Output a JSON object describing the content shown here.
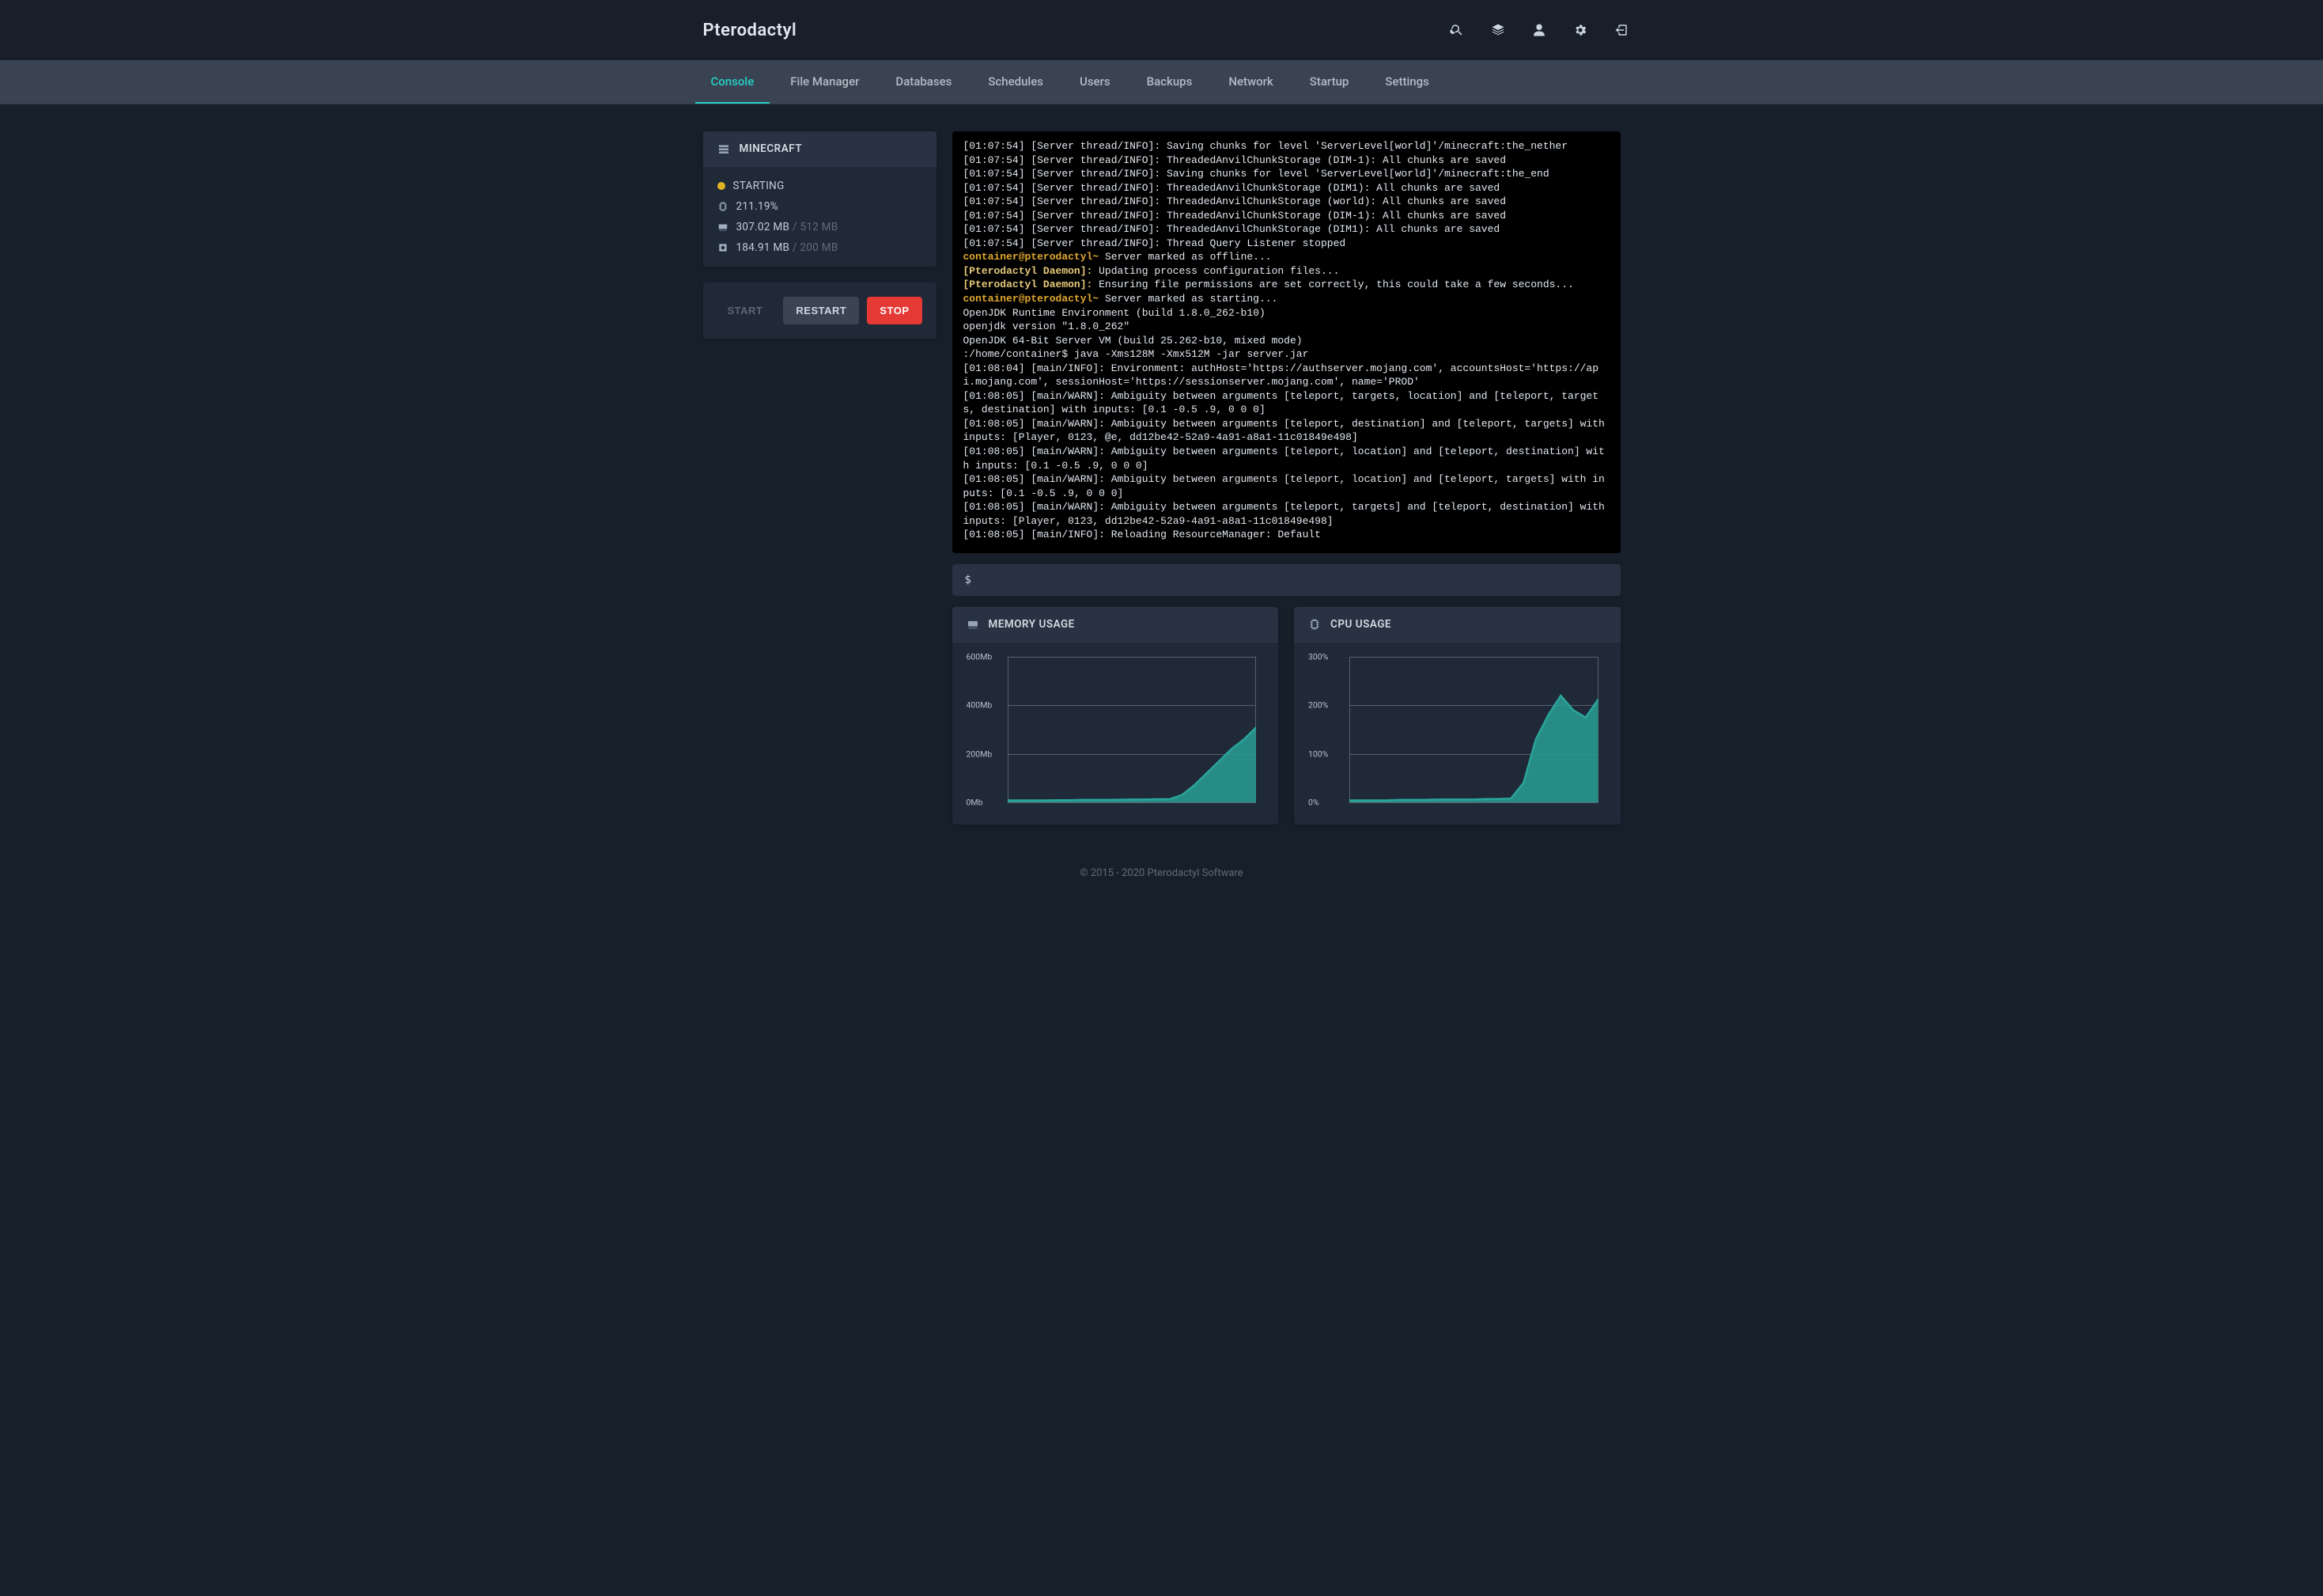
{
  "brand": "Pterodactyl",
  "tabs": [
    "Console",
    "File Manager",
    "Databases",
    "Schedules",
    "Users",
    "Backups",
    "Network",
    "Startup",
    "Settings"
  ],
  "active_tab_index": 0,
  "server": {
    "name": "MINECRAFT",
    "status": "STARTING",
    "status_color": "#e0b226",
    "cpu": "211.19%",
    "mem_used": "307.02 MB",
    "mem_total": "512 MB",
    "disk_used": "184.91 MB",
    "disk_total": "200 MB"
  },
  "buttons": {
    "start": "START",
    "restart": "RESTART",
    "stop": "STOP"
  },
  "console_lines": [
    {
      "t": "[01:07:54] [Server thread/INFO]: Saving chunks for level 'ServerLevel[world]'/minecraft:the_nether"
    },
    {
      "t": "[01:07:54] [Server thread/INFO]: ThreadedAnvilChunkStorage (DIM-1): All chunks are saved"
    },
    {
      "t": "[01:07:54] [Server thread/INFO]: Saving chunks for level 'ServerLevel[world]'/minecraft:the_end"
    },
    {
      "t": "[01:07:54] [Server thread/INFO]: ThreadedAnvilChunkStorage (DIM1): All chunks are saved"
    },
    {
      "t": "[01:07:54] [Server thread/INFO]: ThreadedAnvilChunkStorage (world): All chunks are saved"
    },
    {
      "t": "[01:07:54] [Server thread/INFO]: ThreadedAnvilChunkStorage (DIM-1): All chunks are saved"
    },
    {
      "t": "[01:07:54] [Server thread/INFO]: ThreadedAnvilChunkStorage (DIM1): All chunks are saved"
    },
    {
      "t": "[01:07:54] [Server thread/INFO]: Thread Query Listener stopped"
    },
    {
      "p": "container@pterodactyl~",
      "pc": "yl",
      "t": " Server marked as offline..."
    },
    {
      "p": "[Pterodactyl Daemon]:",
      "pc": "cy",
      "t": " Updating process configuration files..."
    },
    {
      "p": "[Pterodactyl Daemon]:",
      "pc": "cy",
      "t": " Ensuring file permissions are set correctly, this could take a few seconds..."
    },
    {
      "p": "container@pterodactyl~",
      "pc": "yl",
      "t": " Server marked as starting..."
    },
    {
      "t": "OpenJDK Runtime Environment (build 1.8.0_262-b10)"
    },
    {
      "t": "openjdk version \"1.8.0_262\""
    },
    {
      "t": "OpenJDK 64-Bit Server VM (build 25.262-b10, mixed mode)"
    },
    {
      "t": ":/home/container$ java -Xms128M -Xmx512M -jar server.jar"
    },
    {
      "t": "[01:08:04] [main/INFO]: Environment: authHost='https://authserver.mojang.com', accountsHost='https://api.mojang.com', sessionHost='https://sessionserver.mojang.com', name='PROD'"
    },
    {
      "t": "[01:08:05] [main/WARN]: Ambiguity between arguments [teleport, targets, location] and [teleport, targets, destination] with inputs: [0.1 -0.5 .9, 0 0 0]"
    },
    {
      "t": "[01:08:05] [main/WARN]: Ambiguity between arguments [teleport, destination] and [teleport, targets] with inputs: [Player, 0123, @e, dd12be42-52a9-4a91-a8a1-11c01849e498]"
    },
    {
      "t": "[01:08:05] [main/WARN]: Ambiguity between arguments [teleport, location] and [teleport, destination] with inputs: [0.1 -0.5 .9, 0 0 0]"
    },
    {
      "t": "[01:08:05] [main/WARN]: Ambiguity between arguments [teleport, location] and [teleport, targets] with inputs: [0.1 -0.5 .9, 0 0 0]"
    },
    {
      "t": "[01:08:05] [main/WARN]: Ambiguity between arguments [teleport, targets] and [teleport, destination] with inputs: [Player, 0123, dd12be42-52a9-4a91-a8a1-11c01849e498]"
    },
    {
      "t": "[01:08:05] [main/INFO]: Reloading ResourceManager: Default"
    }
  ],
  "cmd_prompt": "$",
  "memory_chart": {
    "title": "MEMORY USAGE",
    "type": "area",
    "y_ticks": [
      0,
      200,
      400,
      600
    ],
    "y_labels": [
      "0Mb",
      "200Mb",
      "400Mb",
      "600Mb"
    ],
    "y_max": 600,
    "values": [
      8,
      8,
      8,
      8,
      9,
      9,
      10,
      10,
      10,
      11,
      12,
      12,
      13,
      13,
      30,
      70,
      120,
      170,
      220,
      260,
      310
    ],
    "line_color": "#2aa59b",
    "fill_color": "#2a9d94",
    "fill_opacity": 0.85,
    "grid_color": "#57606e",
    "background": "#1f2937"
  },
  "cpu_chart": {
    "title": "CPU USAGE",
    "type": "area",
    "y_ticks": [
      0,
      100,
      200,
      300
    ],
    "y_labels": [
      "0%",
      "100%",
      "200%",
      "300%"
    ],
    "y_max": 300,
    "values": [
      4,
      4,
      4,
      4,
      5,
      5,
      5,
      6,
      6,
      6,
      6,
      7,
      7,
      8,
      40,
      130,
      180,
      220,
      190,
      175,
      212
    ],
    "line_color": "#2aa59b",
    "fill_color": "#2a9d94",
    "fill_opacity": 0.85,
    "grid_color": "#57606e",
    "background": "#1f2937"
  },
  "footer": "© 2015 - 2020 Pterodactyl Software"
}
